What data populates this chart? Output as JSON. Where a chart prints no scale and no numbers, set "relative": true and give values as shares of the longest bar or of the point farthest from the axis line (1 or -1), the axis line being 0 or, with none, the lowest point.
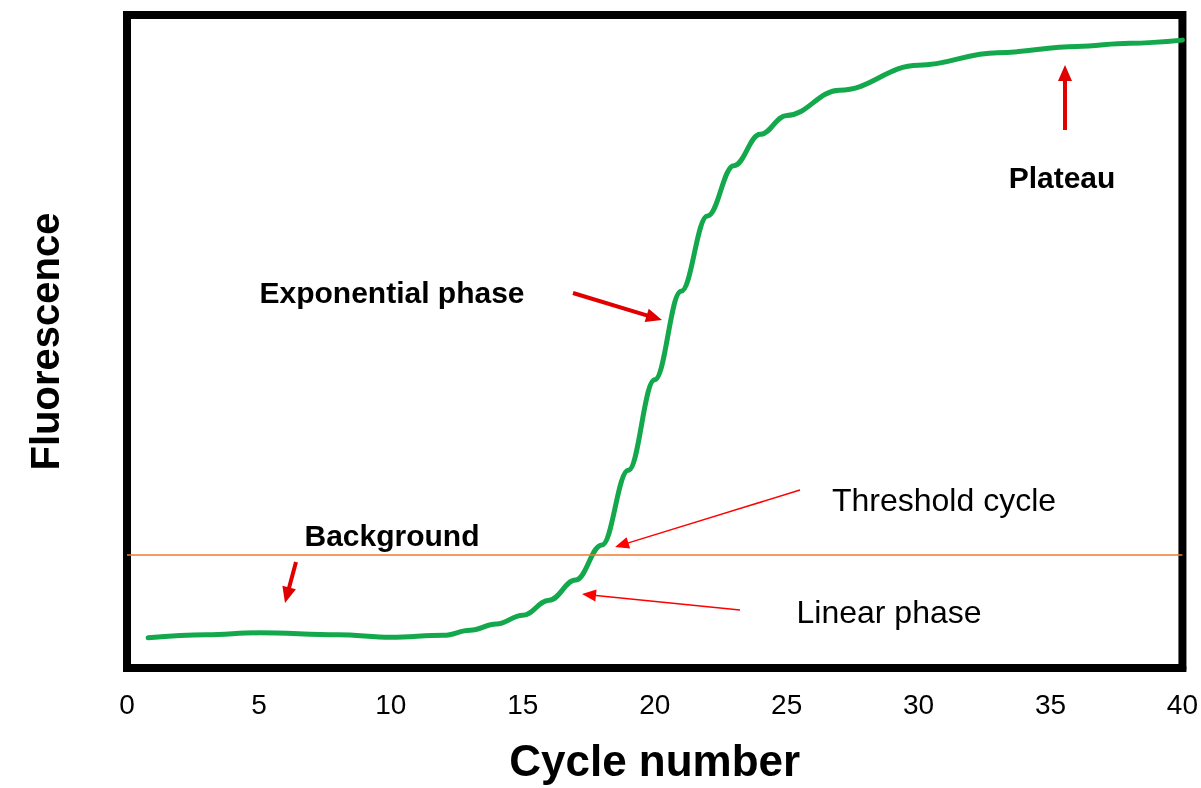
{
  "chart_data": {
    "type": "line",
    "xlabel": "Cycle number",
    "ylabel": "Fluorescence",
    "relative": true,
    "x": [
      0.8,
      3,
      5,
      8,
      10,
      12,
      13,
      14,
      15,
      16,
      17,
      18,
      19,
      20,
      21,
      22,
      23,
      24,
      25,
      27,
      30,
      33,
      36,
      38,
      40
    ],
    "series": [
      {
        "color": "#13a84c",
        "values": [
          0.048,
          0.053,
          0.056,
          0.053,
          0.049,
          0.052,
          0.06,
          0.07,
          0.084,
          0.108,
          0.14,
          0.196,
          0.315,
          0.459,
          0.6,
          0.72,
          0.8,
          0.85,
          0.88,
          0.92,
          0.96,
          0.98,
          0.99,
          0.995,
          1.0
        ]
      }
    ],
    "xlim": [
      0,
      40
    ],
    "xticks": [
      0,
      5,
      10,
      15,
      20,
      25,
      30,
      35,
      40
    ],
    "ref_lines": [
      {
        "axis": "y",
        "value": 0.18,
        "color": "#f07a30"
      }
    ],
    "annotations": [
      "Plateau",
      "Exponential phase",
      "Background",
      "Threshold cycle",
      "Linear phase"
    ],
    "grid": false,
    "marker": "none",
    "line_style": "solid"
  }
}
